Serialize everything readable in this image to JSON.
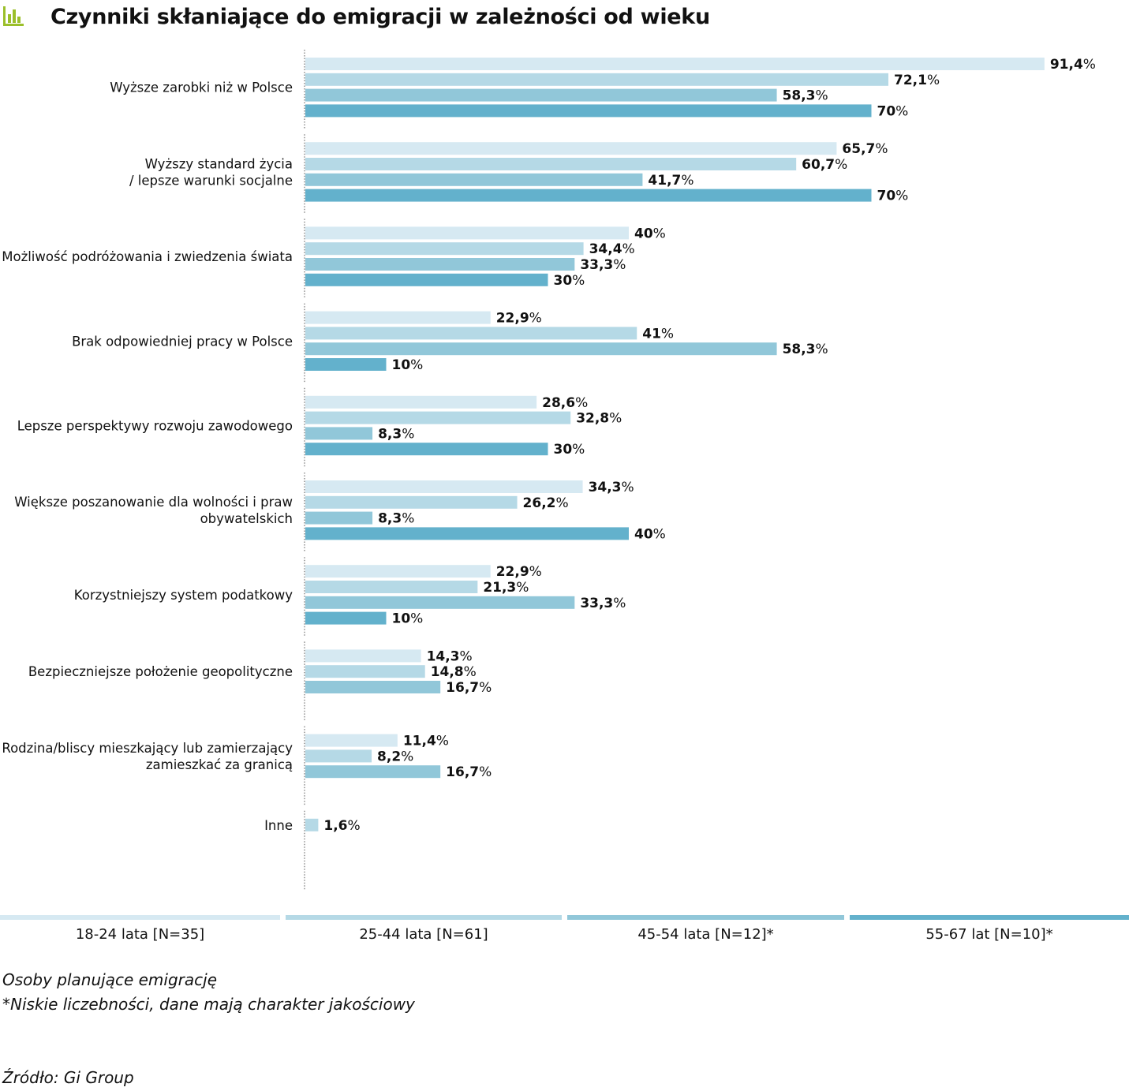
{
  "header": {
    "title": "Czynniki skłaniające do emigracji w zależności od wieku",
    "icon": "bar-chart-icon",
    "icon_color": "#9bbf2a"
  },
  "colors": [
    "#d6e9f2",
    "#b5d9e6",
    "#91c7d9",
    "#63b1cc"
  ],
  "chart_data": {
    "type": "bar",
    "orientation": "horizontal",
    "categories": [
      [
        "Wyższe zarobki niż w Polsce"
      ],
      [
        "Wyższy standard życia",
        "/ lepsze warunki socjalne"
      ],
      [
        "Możliwość podróżowania i zwiedzenia świata"
      ],
      [
        "Brak odpowiedniej pracy w Polsce"
      ],
      [
        "Lepsze perspektywy rozwoju zawodowego"
      ],
      [
        "Większe poszanowanie dla wolności i praw",
        "obywatelskich"
      ],
      [
        "Korzystniejszy system podatkowy"
      ],
      [
        "Bezpieczniejsze położenie geopolityczne"
      ],
      [
        "Rodzina/bliscy mieszkający lub zamierzający",
        "zamieszkać za granicą"
      ],
      [
        "Inne"
      ]
    ],
    "series": [
      {
        "name": "18-24 lata [N=35]",
        "values": [
          91.4,
          65.7,
          40,
          22.9,
          28.6,
          34.3,
          22.9,
          14.3,
          11.4,
          null
        ],
        "labels": [
          "91,4",
          "65,7",
          "40",
          "22,9",
          "28,6",
          "34,3",
          "22,9",
          "14,3",
          "11,4",
          ""
        ]
      },
      {
        "name": "25-44 lata [N=61]",
        "values": [
          72.1,
          60.7,
          34.4,
          41,
          32.8,
          26.2,
          21.3,
          14.8,
          8.2,
          1.6
        ],
        "labels": [
          "72,1",
          "60,7",
          "34,4",
          "41",
          "32,8",
          "26,2",
          "21,3",
          "14,8",
          "8,2",
          "1,6"
        ]
      },
      {
        "name": "45-54 lata [N=12]*",
        "values": [
          58.3,
          41.7,
          33.3,
          58.3,
          8.3,
          8.3,
          33.3,
          16.7,
          16.7,
          null
        ],
        "labels": [
          "58,3",
          "41,7",
          "33,3",
          "58,3",
          "8,3",
          "8,3",
          "33,3",
          "16,7",
          "16,7",
          ""
        ]
      },
      {
        "name": "55-67 lat [N=10]*",
        "values": [
          70,
          70,
          30,
          10,
          30,
          40,
          10,
          null,
          null,
          null
        ],
        "labels": [
          "70",
          "70",
          "30",
          "10",
          "30",
          "40",
          "10",
          "",
          "",
          ""
        ]
      }
    ],
    "unit": "%",
    "xlim": [
      0,
      100
    ],
    "grid": false,
    "legend_position": "bottom"
  },
  "footer": {
    "note_1": "Osoby planujące emigrację",
    "note_2": "*Niskie liczebności, dane mają charakter jakościowy",
    "source": "Źródło: Gi Group"
  }
}
